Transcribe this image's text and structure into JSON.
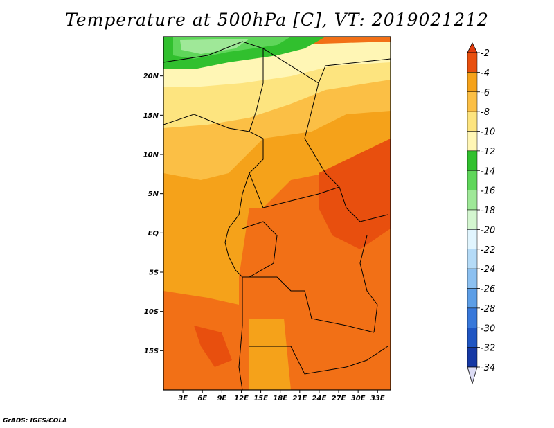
{
  "title": "Temperature at 500hPa [C], VT: 2019021212",
  "credit": "GrADS: IGES/COLA",
  "map": {
    "variable": "Temperature at 500hPa",
    "units": "C",
    "valid_time": "2019021212",
    "lon_range": [
      0,
      35
    ],
    "lat_range": [
      -20,
      25
    ],
    "lat_ticks": [
      {
        "label": "20N",
        "value": 20
      },
      {
        "label": "15N",
        "value": 15
      },
      {
        "label": "10N",
        "value": 10
      },
      {
        "label": "5N",
        "value": 5
      },
      {
        "label": "EQ",
        "value": 0
      },
      {
        "label": "5S",
        "value": -5
      },
      {
        "label": "10S",
        "value": -10
      },
      {
        "label": "15S",
        "value": -15
      }
    ],
    "lon_ticks": [
      {
        "label": "3E",
        "value": 3
      },
      {
        "label": "6E",
        "value": 6
      },
      {
        "label": "9E",
        "value": 9
      },
      {
        "label": "12E",
        "value": 12
      },
      {
        "label": "15E",
        "value": 15
      },
      {
        "label": "18E",
        "value": 18
      },
      {
        "label": "21E",
        "value": 21
      },
      {
        "label": "24E",
        "value": 24
      },
      {
        "label": "27E",
        "value": 27
      },
      {
        "label": "30E",
        "value": 30
      },
      {
        "label": "33E",
        "value": 33
      }
    ]
  },
  "colorbar": {
    "levels": [
      {
        "label": "-2",
        "color": "#e84f0e"
      },
      {
        "label": "-4",
        "color": "#f27016"
      },
      {
        "label": "-6",
        "color": "#f5a21a"
      },
      {
        "label": "-8",
        "color": "#fbbf45"
      },
      {
        "label": "-10",
        "color": "#fde47f"
      },
      {
        "label": "-12",
        "color": "#fff6b5"
      },
      {
        "label": "-14",
        "color": "#31c02e"
      },
      {
        "label": "-16",
        "color": "#5fd65a"
      },
      {
        "label": "-18",
        "color": "#9fe898"
      },
      {
        "label": "-20",
        "color": "#d4f6d0"
      },
      {
        "label": "-22",
        "color": "#e1f5fe"
      },
      {
        "label": "-24",
        "color": "#b5dbf7"
      },
      {
        "label": "-26",
        "color": "#8cc0f0"
      },
      {
        "label": "-28",
        "color": "#5d9ee6"
      },
      {
        "label": "-30",
        "color": "#3878da"
      },
      {
        "label": "-32",
        "color": "#1f55c2"
      },
      {
        "label": "-34",
        "color": "#1538a4"
      }
    ],
    "top_color": "#e23b0c",
    "bottom_color": "#0a1870",
    "below_min_color": "#dcdcf5"
  }
}
